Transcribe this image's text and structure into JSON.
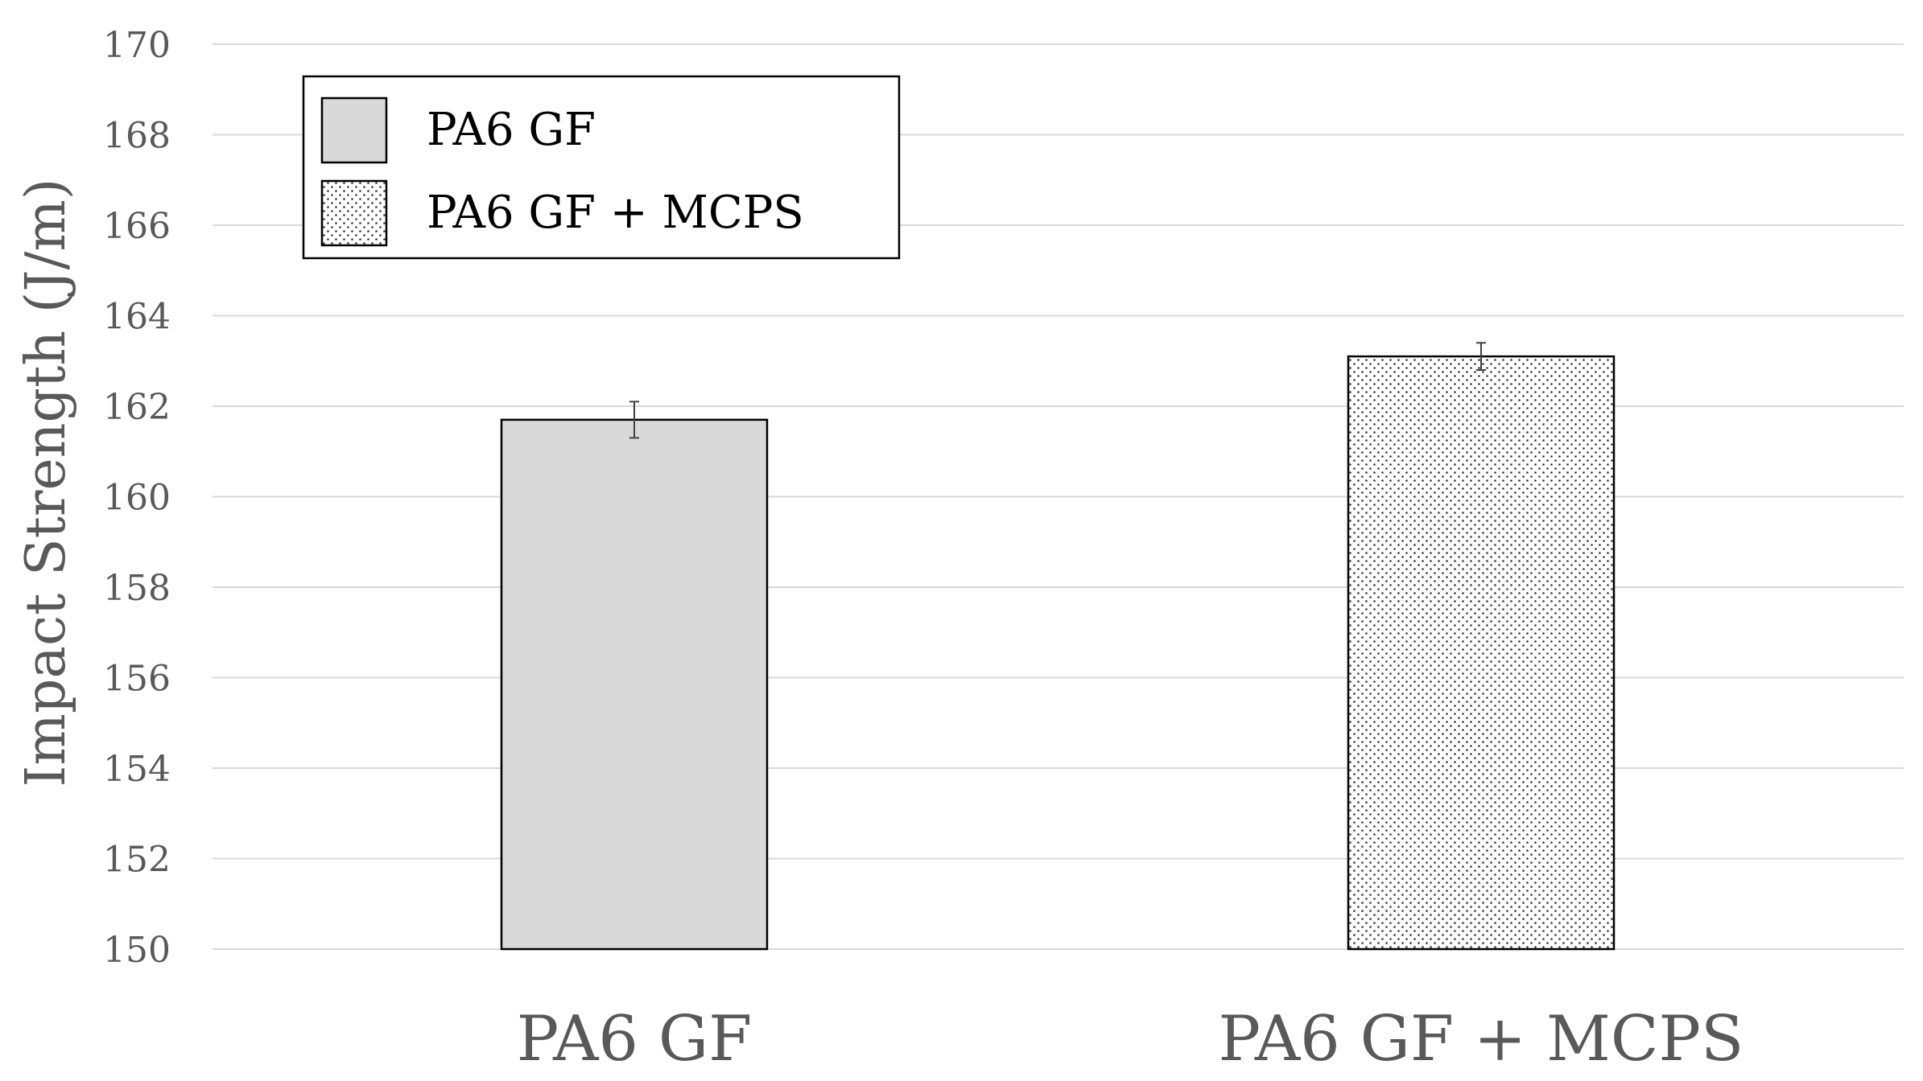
{
  "chart_data": {
    "type": "bar",
    "title": "",
    "xlabel": "",
    "ylabel": "Impact Strength (J/m)",
    "ylim": [
      150,
      170
    ],
    "yticks": [
      150,
      152,
      154,
      156,
      158,
      160,
      162,
      164,
      166,
      168,
      170
    ],
    "ytick_labels": [
      "150",
      "152",
      "154",
      "156",
      "158",
      "160",
      "162",
      "164",
      "166",
      "168",
      "170"
    ],
    "grid": true,
    "legend_position": "top-left",
    "categories": [
      "PA6 GF",
      "PA6 GF + MCPS"
    ],
    "values": [
      161.7,
      163.1
    ],
    "errors": [
      0.4,
      0.3
    ],
    "series_styles": [
      {
        "name": "PA6 GF",
        "fill": "#d9d9d9",
        "pattern": "solid"
      },
      {
        "name": "PA6 GF + MCPS",
        "fill": "#ffffff",
        "pattern": "dots"
      }
    ],
    "colors": {
      "grid": "#d9d9d9",
      "axis_text": "#595959",
      "bar_stroke": "#000000",
      "error_bar": "#404040"
    }
  }
}
